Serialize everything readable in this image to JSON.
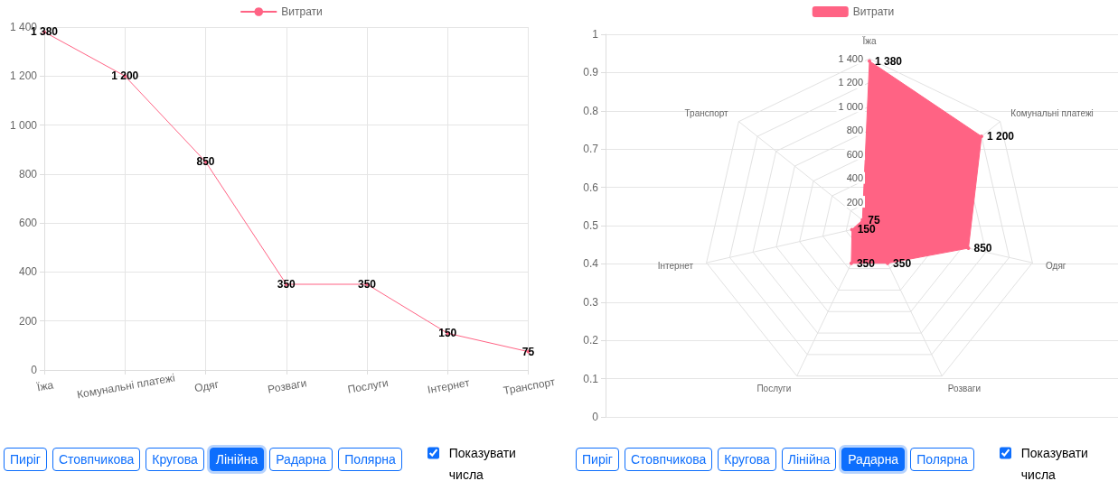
{
  "chart_data": [
    {
      "type": "line",
      "categories": [
        "Їжа",
        "Комунальні платежі",
        "Одяг",
        "Розваги",
        "Послуги",
        "Інтернет",
        "Транспорт"
      ],
      "series": [
        {
          "name": "Витрати",
          "color": "#ff6384",
          "values": [
            1380,
            1200,
            850,
            350,
            350,
            150,
            75
          ],
          "value_labels": [
            "1 380",
            "1 200",
            "850",
            "350",
            "350",
            "150",
            "75"
          ]
        }
      ],
      "ylim": [
        0,
        1400
      ],
      "yticks": [
        0,
        200,
        400,
        600,
        800,
        {
          "value": 1000,
          "label": "1 000"
        },
        {
          "value": 1200,
          "label": "1 200"
        },
        {
          "value": 1400,
          "label": "1 400"
        }
      ],
      "grid": true,
      "legend": "top",
      "annotations": [
        "Пиріг",
        "Стовпчикова",
        "Кругова",
        "Лінійна",
        "Радарна",
        "Полярна",
        "Показувати числа"
      ]
    },
    {
      "type": "radar",
      "categories": [
        "Їжа",
        "Комунальні платежі",
        "Одяг",
        "Розваги",
        "Послуги",
        "Інтернет",
        "Транспорт"
      ],
      "series": [
        {
          "name": "Витрати",
          "color": "#ff6384",
          "values": [
            1380,
            1200,
            850,
            350,
            350,
            150,
            75
          ],
          "value_labels": [
            "1 380",
            "1 200",
            "850",
            "350",
            "350",
            "150",
            "75"
          ]
        }
      ],
      "ylim": [
        0,
        1400
      ],
      "yticks": [
        200,
        400,
        600,
        800,
        {
          "value": 1000,
          "label": "1 000"
        },
        {
          "value": 1200,
          "label": "1 200"
        },
        {
          "value": 1400,
          "label": "1 400"
        }
      ],
      "grid": true,
      "legend": "top",
      "annotations": [
        "Пиріг",
        "Стовпчикова",
        "Кругова",
        "Лінійна",
        "Радарна",
        "Полярна",
        "Показувати числа"
      ]
    },
    {
      "type": "line",
      "categories": [
        null
      ],
      "ylim": [
        0,
        1
      ],
      "yticks": [
        0,
        0.1,
        0.2,
        0.3,
        0.4,
        0.5,
        0.6,
        0.7,
        0.8,
        0.9,
        1
      ],
      "grid": "y",
      "tick_labels": "y"
    }
  ]
}
